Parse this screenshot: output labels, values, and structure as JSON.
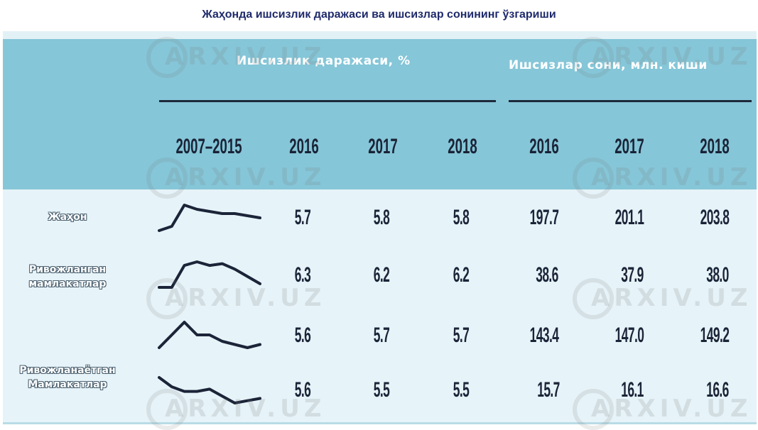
{
  "title": "Жаҳонда ишсизлик даражаси ва ишсизлар сонининг ўзгариши",
  "groups": {
    "rate": "Ишсизлик даражаси, %",
    "count": "Ишсизлар сони, млн. киши"
  },
  "columns": [
    "2007–2015",
    "2016",
    "2017",
    "2018",
    "2016",
    "2017",
    "2018"
  ],
  "watermark": "ARXIV.UZ",
  "colors": {
    "header": "#85c6d8",
    "body": "#e6f3f8",
    "text": "#1b2438",
    "spark": "#1b2438"
  },
  "chart_data": {
    "type": "table",
    "title": "Жаҳонда ишсизлик даражаси ва ишсизлар сонининг ўзгариши",
    "column_groups": [
      "Ишсизлик даражаси, %",
      "Ишсизлар сони, млн. киши"
    ],
    "rows": [
      {
        "label": "Жаҳон",
        "trend": [
          5.4,
          5.5,
          6.0,
          5.9,
          5.85,
          5.8,
          5.8,
          5.75,
          5.7
        ],
        "rate": [
          "5.7",
          "5.8",
          "5.8"
        ],
        "count": [
          "197.7",
          "201.1",
          "203.8"
        ]
      },
      {
        "label": "Ривожланган мамлакатлар",
        "trend": [
          5.8,
          5.8,
          6.4,
          6.5,
          6.4,
          6.45,
          6.3,
          6.1,
          5.9
        ],
        "rate": [
          "6.3",
          "6.2",
          "6.2"
        ],
        "count": [
          "38.6",
          "37.9",
          "38.0"
        ]
      },
      {
        "label": "",
        "trend": [
          5.4,
          5.6,
          5.8,
          5.6,
          5.6,
          5.5,
          5.45,
          5.4,
          5.45
        ],
        "rate": [
          "5.6",
          "5.7",
          "5.7"
        ],
        "count": [
          "143.4",
          "147.0",
          "149.2"
        ]
      },
      {
        "label": "Ривожланаётган Мамлакатлар",
        "trend": [
          5.9,
          5.7,
          5.6,
          5.6,
          5.65,
          5.5,
          5.35,
          5.4,
          5.45
        ],
        "rate": [
          "5.6",
          "5.5",
          "5.5"
        ],
        "count": [
          "15.7",
          "16.1",
          "16.6"
        ]
      }
    ]
  }
}
